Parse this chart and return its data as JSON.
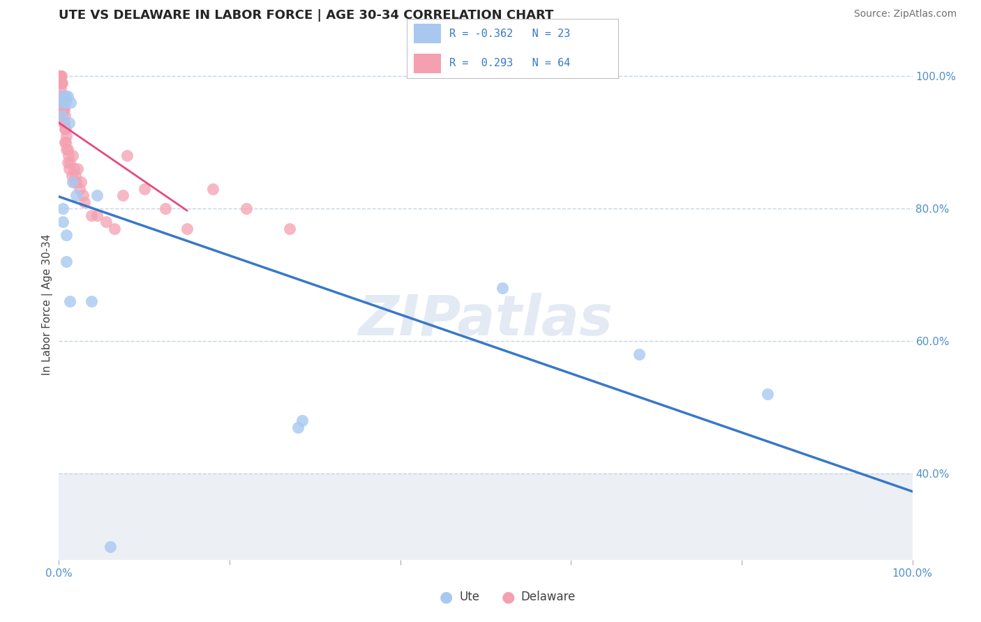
{
  "title": "UTE VS DELAWARE IN LABOR FORCE | AGE 30-34 CORRELATION CHART",
  "source_text": "Source: ZipAtlas.com",
  "ylabel": "In Labor Force | Age 30-34",
  "xlim": [
    0.0,
    100.0
  ],
  "ylim": [
    27.0,
    104.0
  ],
  "y_ticks_right": [
    40.0,
    60.0,
    80.0,
    100.0
  ],
  "y_tick_labels_right": [
    "40.0%",
    "60.0%",
    "80.0%",
    "100.0%"
  ],
  "ute_color": "#a8c8f0",
  "delaware_color": "#f4a0b0",
  "ute_line_color": "#3878c8",
  "delaware_line_color": "#e84880",
  "legend_r_ute": "R = -0.362",
  "legend_n_ute": "N = 23",
  "legend_r_del": "R =  0.293",
  "legend_n_del": "N = 64",
  "watermark": "ZIPatlas",
  "ute_x": [
    0.4,
    0.8,
    0.4,
    0.8,
    1.0,
    1.4,
    0.4,
    1.2,
    1.6,
    2.0,
    0.5,
    0.5,
    0.9,
    0.9,
    1.3,
    4.5,
    3.8,
    28.0,
    28.5,
    6.0,
    52.0,
    68.0,
    83.0
  ],
  "ute_y": [
    97.0,
    97.0,
    96.0,
    96.0,
    97.0,
    96.0,
    94.0,
    93.0,
    84.0,
    82.0,
    80.0,
    78.0,
    76.0,
    72.0,
    66.0,
    82.0,
    66.0,
    47.0,
    48.0,
    29.0,
    68.0,
    58.0,
    52.0
  ],
  "del_x": [
    0.15,
    0.15,
    0.15,
    0.15,
    0.2,
    0.2,
    0.2,
    0.2,
    0.2,
    0.25,
    0.25,
    0.25,
    0.25,
    0.25,
    0.3,
    0.3,
    0.3,
    0.3,
    0.3,
    0.4,
    0.4,
    0.4,
    0.5,
    0.5,
    0.55,
    0.55,
    0.55,
    0.6,
    0.6,
    0.7,
    0.7,
    0.7,
    0.8,
    0.8,
    0.9,
    0.9,
    1.0,
    1.0,
    1.1,
    1.2,
    1.3,
    1.5,
    1.6,
    1.8,
    1.8,
    1.9,
    2.0,
    2.2,
    2.4,
    2.6,
    2.8,
    3.0,
    3.8,
    4.5,
    5.5,
    6.5,
    7.5,
    8.0,
    10.0,
    12.5,
    15.0,
    18.0,
    22.0,
    27.0
  ],
  "del_y": [
    100.0,
    100.0,
    100.0,
    99.0,
    100.0,
    100.0,
    99.0,
    98.0,
    97.0,
    100.0,
    99.0,
    97.0,
    96.0,
    95.0,
    100.0,
    99.0,
    97.0,
    96.0,
    94.0,
    99.0,
    97.0,
    95.0,
    97.0,
    95.0,
    97.0,
    95.0,
    93.0,
    95.0,
    93.0,
    94.0,
    92.0,
    90.0,
    92.0,
    90.0,
    91.0,
    89.0,
    89.0,
    87.0,
    88.0,
    86.0,
    87.0,
    85.0,
    88.0,
    86.0,
    84.0,
    85.0,
    84.0,
    86.0,
    83.0,
    84.0,
    82.0,
    81.0,
    79.0,
    79.0,
    78.0,
    77.0,
    82.0,
    88.0,
    83.0,
    80.0,
    77.0,
    83.0,
    80.0,
    77.0
  ],
  "grid_color": "#c0d0e0",
  "bottom_bg_color": "#ecf0f5",
  "main_bg_color": "#ffffff",
  "title_color": "#252525",
  "source_color": "#707070",
  "tick_color": "#5090c8",
  "ylabel_color": "#404040"
}
